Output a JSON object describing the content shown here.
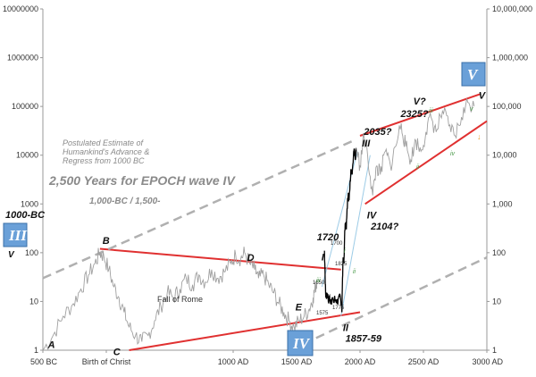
{
  "chart_data": {
    "type": "line",
    "title": "2,500 Years for EPOCH wave IV",
    "subtitle": "1,000-BC  /  1,500-",
    "note_lines": [
      "Postulated Estimate of",
      "Humankind's Advance &",
      "Regress from 1000 BC"
    ],
    "y_scale": "log",
    "ylim": [
      1,
      10000000
    ],
    "xlim": [
      -500,
      3000
    ],
    "x_ticks": [
      {
        "value": -500,
        "label": "500 BC"
      },
      {
        "value": 0,
        "label": "Birth of Christ"
      },
      {
        "value": 1000,
        "label": "1000 AD"
      },
      {
        "value": 1500,
        "label": "1500 AD"
      },
      {
        "value": 2000,
        "label": "2000 AD"
      },
      {
        "value": 2500,
        "label": "2500 AD"
      },
      {
        "value": 3000,
        "label": "3000 AD"
      }
    ],
    "y_ticks_left": [
      {
        "value": 1,
        "label": "1"
      },
      {
        "value": 10,
        "label": "10"
      },
      {
        "value": 100,
        "label": "100"
      },
      {
        "value": 1000,
        "label": "1000"
      },
      {
        "value": 10000,
        "label": "10000"
      },
      {
        "value": 100000,
        "label": "100000"
      },
      {
        "value": 1000000,
        "label": "1000000"
      },
      {
        "value": 10000000,
        "label": "10000000"
      }
    ],
    "y_ticks_right": [
      {
        "value": 1,
        "label": "1"
      },
      {
        "value": 10,
        "label": "10"
      },
      {
        "value": 100,
        "label": "100"
      },
      {
        "value": 1000,
        "label": "1,000"
      },
      {
        "value": 10000,
        "label": "10,000"
      },
      {
        "value": 100000,
        "label": "100,000"
      },
      {
        "value": 1000000,
        "label": "1,000,000"
      },
      {
        "value": 10000000,
        "label": "10,000,000"
      }
    ],
    "series": [
      {
        "role": "historical-wave-iv",
        "color": "#a0a0a0",
        "points": [
          [
            -500,
            1
          ],
          [
            -420,
            2
          ],
          [
            -340,
            5
          ],
          [
            -260,
            9
          ],
          [
            -200,
            18
          ],
          [
            -140,
            35
          ],
          [
            -90,
            60
          ],
          [
            -50,
            100
          ],
          [
            -20,
            85
          ],
          [
            20,
            45
          ],
          [
            60,
            20
          ],
          [
            100,
            12
          ],
          [
            140,
            6
          ],
          [
            180,
            3
          ],
          [
            230,
            2
          ],
          [
            280,
            1.5
          ],
          [
            330,
            2
          ],
          [
            380,
            4
          ],
          [
            430,
            8
          ],
          [
            480,
            15
          ],
          [
            530,
            12
          ],
          [
            580,
            18
          ],
          [
            630,
            30
          ],
          [
            680,
            22
          ],
          [
            730,
            35
          ],
          [
            780,
            25
          ],
          [
            830,
            45
          ],
          [
            880,
            30
          ],
          [
            930,
            40
          ],
          [
            980,
            60
          ],
          [
            1020,
            90
          ],
          [
            1060,
            75
          ],
          [
            1090,
            100
          ],
          [
            1130,
            60
          ],
          [
            1170,
            45
          ],
          [
            1200,
            30
          ],
          [
            1240,
            35
          ],
          [
            1280,
            22
          ],
          [
            1320,
            15
          ],
          [
            1360,
            9
          ],
          [
            1400,
            6
          ],
          [
            1440,
            4
          ],
          [
            1480,
            3
          ],
          [
            1520,
            4
          ],
          [
            1560,
            5
          ],
          [
            1600,
            7
          ],
          [
            1630,
            12
          ],
          [
            1650,
            20
          ],
          [
            1660,
            28
          ]
        ]
      },
      {
        "role": "modern-black",
        "color": "#000000",
        "points": [
          [
            1720,
            110
          ],
          [
            1725,
            35
          ],
          [
            1730,
            12
          ],
          [
            1740,
            15
          ],
          [
            1750,
            10
          ],
          [
            1760,
            13
          ],
          [
            1770,
            9
          ],
          [
            1780,
            12
          ],
          [
            1790,
            10
          ],
          [
            1800,
            13
          ],
          [
            1810,
            11
          ],
          [
            1820,
            9
          ],
          [
            1830,
            12
          ],
          [
            1840,
            14
          ],
          [
            1850,
            9
          ],
          [
            1857,
            6
          ],
          [
            1862,
            30
          ],
          [
            1867,
            80
          ],
          [
            1872,
            60
          ],
          [
            1878,
            200
          ],
          [
            1885,
            400
          ],
          [
            1892,
            300
          ],
          [
            1898,
            800
          ],
          [
            1906,
            1500
          ],
          [
            1914,
            1200
          ],
          [
            1922,
            3000
          ],
          [
            1930,
            5000
          ],
          [
            1938,
            4000
          ],
          [
            1948,
            9000
          ],
          [
            1956,
            12000
          ],
          [
            1963,
            8000
          ],
          [
            1970,
            14000
          ]
        ]
      },
      {
        "role": "projection-gray",
        "color": "#a0a0a0",
        "points": [
          [
            1970,
            14000
          ],
          [
            2000,
            6000
          ],
          [
            2030,
            25000
          ],
          [
            2060,
            10000
          ],
          [
            2100,
            1500
          ],
          [
            2130,
            6000
          ],
          [
            2160,
            4000
          ],
          [
            2200,
            12000
          ],
          [
            2240,
            6000
          ],
          [
            2280,
            15000
          ],
          [
            2325,
            45000
          ],
          [
            2360,
            15000
          ],
          [
            2400,
            8000
          ],
          [
            2440,
            20000
          ],
          [
            2480,
            12000
          ],
          [
            2520,
            30000
          ],
          [
            2560,
            60000
          ],
          [
            2600,
            30000
          ],
          [
            2650,
            80000
          ],
          [
            2700,
            40000
          ],
          [
            2750,
            25000
          ],
          [
            2800,
            60000
          ],
          [
            2850,
            120000
          ],
          [
            2900,
            100000
          ]
        ]
      }
    ],
    "trend_lines": [
      {
        "color": "#e03030",
        "from": [
          -50,
          120
        ],
        "to": [
          1850,
          45
        ]
      },
      {
        "color": "#e03030",
        "from": [
          180,
          1
        ],
        "to": [
          2000,
          6
        ]
      },
      {
        "color": "#e03030",
        "from": [
          2000,
          25000
        ],
        "to": [
          2950,
          180000
        ]
      },
      {
        "color": "#e03030",
        "from": [
          2040,
          1000
        ],
        "to": [
          3000,
          50000
        ]
      },
      {
        "color": "#b0b0b0",
        "dashed": true,
        "from": [
          -500,
          30
        ],
        "to": [
          1950,
          20000
        ]
      },
      {
        "color": "#b0b0b0",
        "dashed": true,
        "from": [
          1450,
          1
        ],
        "to": [
          3000,
          80
        ]
      },
      {
        "color": "#9ccbe6",
        "from": [
          1700,
          20
        ],
        "to": [
          1980,
          12000
        ]
      },
      {
        "color": "#9ccbe6",
        "from": [
          1850,
          5
        ],
        "to": [
          2080,
          10000
        ]
      }
    ],
    "annotations": [
      {
        "text": "1000-BC",
        "x": -520,
        "y": 500
      },
      {
        "text": "B",
        "x": -30,
        "y": 150
      },
      {
        "text": "D",
        "x": 1110,
        "y": 68
      },
      {
        "text": "E",
        "x": 1490,
        "y": 6.5
      },
      {
        "text": "C",
        "x": 55,
        "y": 0.8
      },
      {
        "text": "A",
        "x": -460,
        "y": 1.1
      },
      {
        "text": "I",
        "x": 1695,
        "y": 70
      },
      {
        "text": "1720",
        "x": 1660,
        "y": 180
      },
      {
        "text": "II",
        "x": 1865,
        "y": 2.5
      },
      {
        "text": "1857-59",
        "x": 1885,
        "y": 1.5
      },
      {
        "text": "III",
        "x": 2015,
        "y": 15000
      },
      {
        "text": "2035?",
        "x": 2030,
        "y": 26000
      },
      {
        "text": "IV",
        "x": 2055,
        "y": 500
      },
      {
        "text": "2104?",
        "x": 2085,
        "y": 300
      },
      {
        "text": "2325?",
        "x": 2320,
        "y": 60000
      },
      {
        "text": "V",
        "x": 2935,
        "y": 145000
      },
      {
        "text": "V?",
        "x": 2420,
        "y": 110000
      }
    ],
    "labels": {
      "fall_of_rome": "Fall of Rome",
      "box_iii": "III",
      "box_iv": "IV",
      "box_v": "V",
      "left_v": "V",
      "left_label": "1000-BC",
      "small_1650": "1650",
      "small_1575": "1575",
      "small_1775": "1775",
      "small_1825": "1825",
      "small_1700": "1700",
      "green_roman_i": "i",
      "green_roman_iii": "iii",
      "green_roman_iii_b": "iii",
      "green_roman_iv": "iv",
      "green_roman_ii": "ii",
      "green_roman_v": "v",
      "green_roman_ii_b": "ii"
    },
    "colors": {
      "box_fill": "#6aa0d8",
      "box_stroke": "#3a6fa8",
      "trend_red": "#e03030",
      "projection_gray": "#a0a0a0",
      "dashed_gray": "#b0b0b0",
      "channel_blue": "#9ccbe6",
      "orange_arrow": "#e8a030"
    },
    "grid": false,
    "legend": "none"
  }
}
